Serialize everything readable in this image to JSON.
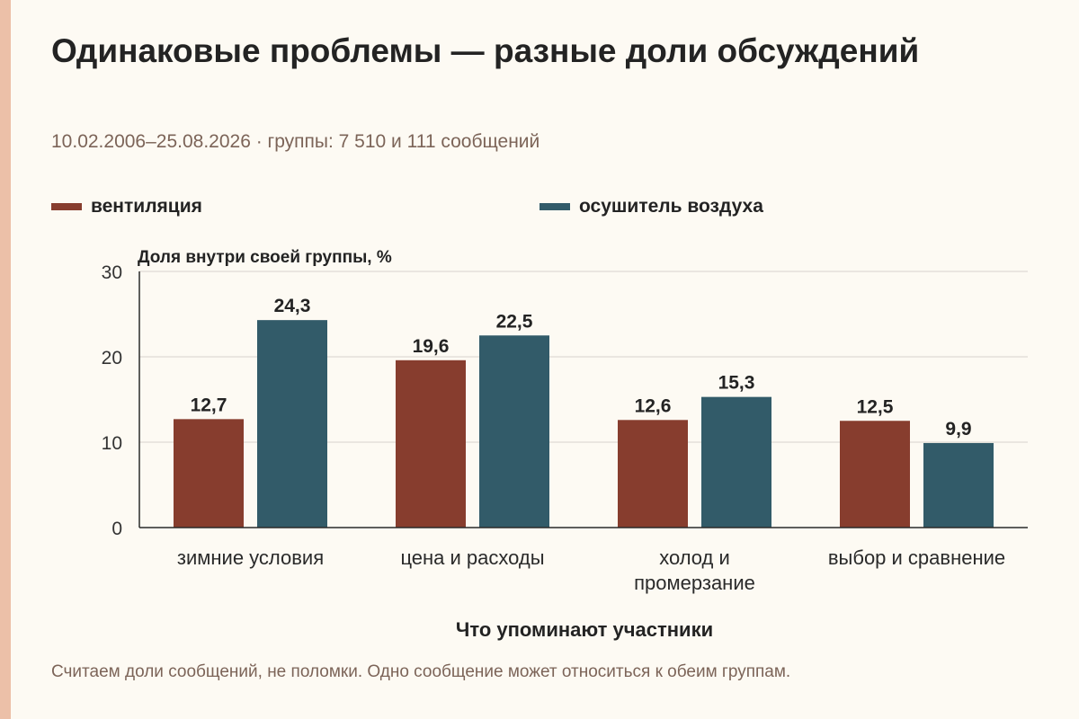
{
  "header": {
    "title": "Одинаковые проблемы — разные доли обсуждений",
    "subtitle": "10.02.2006–25.08.2026 · группы: 7 510 и 111 сообщений"
  },
  "footer": {
    "note": "Считаем доли сообщений, не поломки. Одно сообщение может относиться к обеим группам."
  },
  "colors": {
    "background": "#fdfaf3",
    "accent_stripe": "#ecc0a8",
    "series_1": "#873d2e",
    "series_2": "#325b69",
    "text": "#232323",
    "muted_text": "#7c6458",
    "grid": "#d6d3cc"
  },
  "chart_data": {
    "type": "bar",
    "title": "Одинаковые проблемы — разные доли обсуждений",
    "subtitle": "10.02.2006–25.08.2026 · группы: 7 510 и 111 сообщений",
    "xlabel": "Что упоминают участники",
    "ylabel": "Доля внутри своей группы, %",
    "ylim": [
      0,
      30
    ],
    "yticks": [
      0,
      10,
      20,
      30
    ],
    "categories": [
      "зимние условия",
      "цена и расходы",
      "холод и промерзание",
      "выбор и сравнение"
    ],
    "series": [
      {
        "name": "вентиляция",
        "values": [
          12.7,
          19.6,
          12.6,
          12.5
        ],
        "labels": [
          "12,7",
          "19,6",
          "12,6",
          "12,5"
        ],
        "color": "#873d2e"
      },
      {
        "name": "осушитель воздуха",
        "values": [
          24.3,
          22.5,
          15.3,
          9.9
        ],
        "labels": [
          "24,3",
          "22,5",
          "15,3",
          "9,9"
        ],
        "color": "#325b69"
      }
    ],
    "grid": true,
    "legend": "top-left"
  }
}
